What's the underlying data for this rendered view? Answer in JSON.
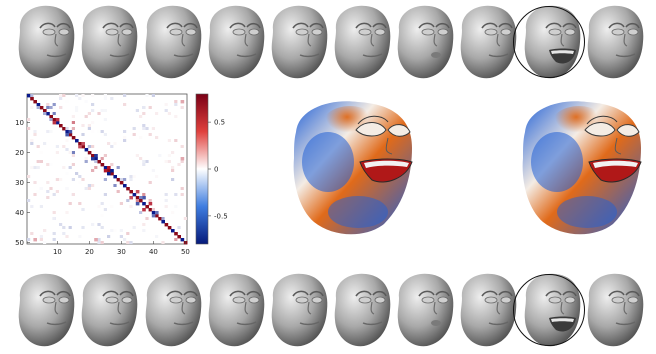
{
  "faces_top": {
    "count": 10,
    "selected_index": 8,
    "icon": "grey-face-mesh-icon"
  },
  "faces_bottom": {
    "count": 10,
    "selected_index": 8,
    "icon": "grey-face-mesh-icon"
  },
  "matrix": {
    "y_ticks": [
      "10",
      "20",
      "30",
      "40",
      "50"
    ],
    "x_ticks": [
      "10",
      "20",
      "30",
      "40",
      "50"
    ],
    "colorbar_ticks": [
      "0.5",
      "0",
      "-0.5"
    ],
    "colors": {
      "positive": "#b2182b",
      "negative": "#0a1a8c",
      "zero": "#ffffff"
    }
  },
  "colored_faces": {
    "count": 2,
    "icon": "colored-face-mesh-icon",
    "colors": {
      "warm": "#e06a1a",
      "cool": "#1f5fd6",
      "neutral": "#f4ece4"
    }
  },
  "chart_data": {
    "type": "heatmap",
    "title": "",
    "xlabel": "",
    "ylabel": "",
    "x_ticks": [
      10,
      20,
      30,
      40,
      50
    ],
    "y_ticks": [
      10,
      20,
      30,
      40,
      50
    ],
    "size": [
      50,
      50
    ],
    "clim": [
      -0.8,
      0.8
    ],
    "colorbar_ticks": [
      0.5,
      0,
      -0.5
    ],
    "diagonal": 1,
    "notable_cells": [
      {
        "row": 9,
        "col": 10,
        "value": 0.7
      },
      {
        "row": 13,
        "col": 14,
        "value": -0.6
      },
      {
        "row": 17,
        "col": 18,
        "value": 0.6
      },
      {
        "row": 21,
        "col": 22,
        "value": -0.7
      },
      {
        "row": 25,
        "col": 26,
        "value": 0.8
      },
      {
        "row": 26,
        "col": 27,
        "value": -0.8
      },
      {
        "row": 33,
        "col": 35,
        "value": 0.6
      },
      {
        "row": 35,
        "col": 37,
        "value": -0.6
      },
      {
        "row": 37,
        "col": 39,
        "value": 0.7
      },
      {
        "row": 40,
        "col": 41,
        "value": -0.5
      },
      {
        "row": 49,
        "col": 3,
        "value": 0.3
      },
      {
        "row": 49,
        "col": 22,
        "value": 0.3
      }
    ]
  }
}
